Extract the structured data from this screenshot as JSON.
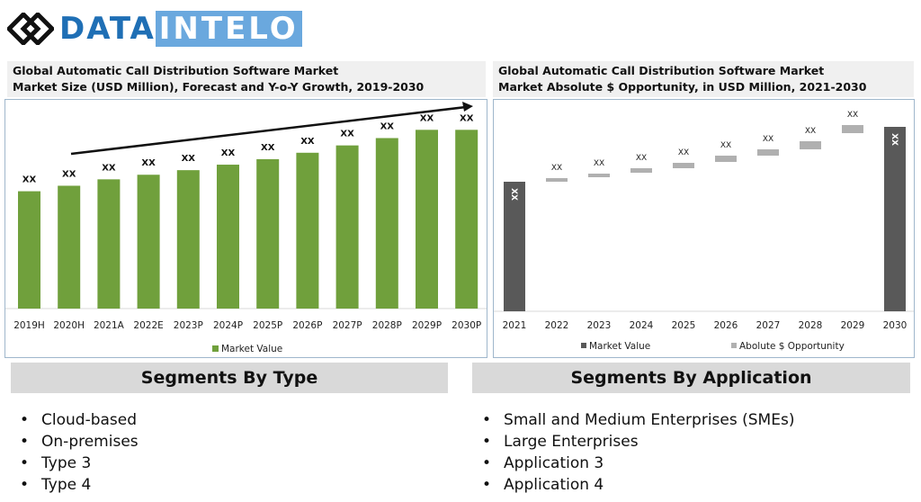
{
  "brand": {
    "name_dark": "DATA",
    "name_light": "INTELO"
  },
  "colors": {
    "green": "#70a03c",
    "dark": "#595959",
    "light": "#b0b0b0"
  },
  "chart_data": [
    {
      "type": "bar",
      "title": "Global Automatic Call Distribution Software Market",
      "subtitle": "Market Size (USD Million), Forecast and Y-o-Y Growth, 2019-2030",
      "categories": [
        "2019H",
        "2020H",
        "2021A",
        "2022E",
        "2023P",
        "2024P",
        "2025P",
        "2026P",
        "2027P",
        "2028P",
        "2029P",
        "2030P"
      ],
      "values": [
        128,
        134,
        141,
        146,
        151,
        157,
        163,
        170,
        178,
        186,
        195,
        195
      ],
      "data_labels": [
        "XX",
        "XX",
        "XX",
        "XX",
        "XX",
        "XX",
        "XX",
        "XX",
        "XX",
        "XX",
        "XX",
        "XX"
      ],
      "legend": "Market Value",
      "legend_position": "bottom",
      "ylim": [
        0,
        230
      ],
      "annotation": "upward growth arrow"
    },
    {
      "type": "bar",
      "title": "Global Automatic Call Distribution Software Market",
      "subtitle": "Market Absolute $ Opportunity, in USD Million, 2021-2030",
      "categories": [
        "2021",
        "2022",
        "2023",
        "2024",
        "2025",
        "2026",
        "2027",
        "2028",
        "2029",
        "2030"
      ],
      "series": [
        {
          "name": "Market Value",
          "values": [
            144,
            null,
            null,
            null,
            null,
            null,
            null,
            null,
            null,
            205
          ]
        },
        {
          "name": "Abolute $ Opportunity",
          "ranges": [
            null,
            [
              144,
              148
            ],
            [
              149,
              153
            ],
            [
              154,
              159
            ],
            [
              159,
              165
            ],
            [
              166,
              173
            ],
            [
              173,
              180
            ],
            [
              180,
              189
            ],
            [
              198,
              207
            ],
            null
          ]
        }
      ],
      "data_labels": [
        "XX",
        "XX",
        "XX",
        "XX",
        "XX",
        "XX",
        "XX",
        "XX",
        "XX",
        "XX"
      ],
      "legend_position": "bottom",
      "ylim": [
        0,
        230
      ]
    }
  ],
  "segments": {
    "type": {
      "title": "Segments By Type",
      "items": [
        "Cloud-based",
        "On-premises",
        "Type 3",
        "Type 4"
      ]
    },
    "application": {
      "title": "Segments By Application",
      "items": [
        "Small and Medium Enterprises (SMEs)",
        "Large Enterprises",
        "Application 3",
        "Application 4"
      ]
    }
  }
}
